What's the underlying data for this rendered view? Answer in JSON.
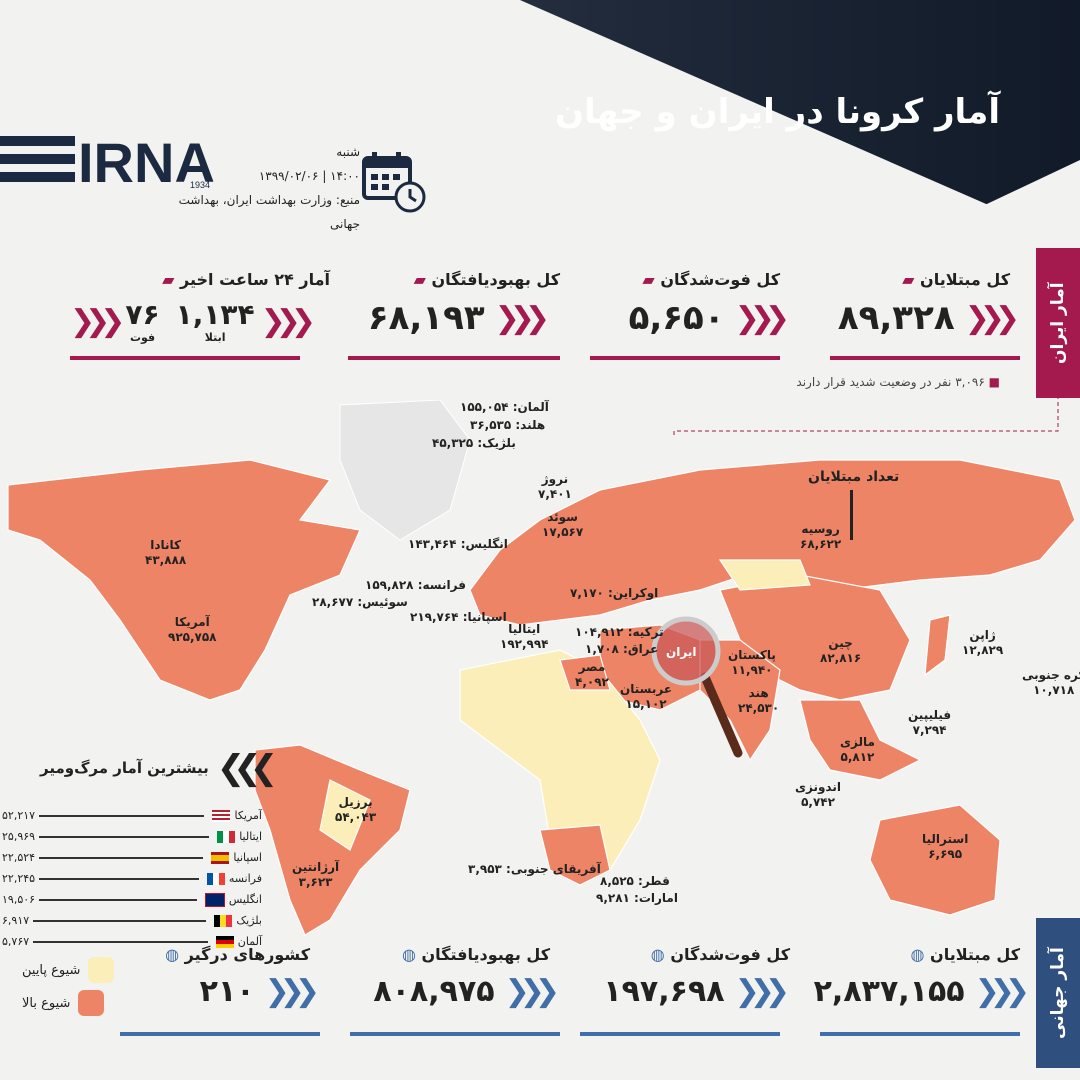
{
  "header": {
    "title": "آمار کرونا در ایران و جهان",
    "logo_text": "IRNA",
    "logo_year": "1934",
    "day": "شنبه",
    "datetime": "۱۴:۰۰ | ۱۳۹۹/۰۲/۰۶",
    "source": "منبع: وزارت بهداشت ایران، بهداشت جهانی"
  },
  "iran": {
    "tab_label": "آمار ایران",
    "cases_label": "کل مبتلایان",
    "cases": "۸۹,۳۲۸",
    "deaths_label": "کل فوت‌شدگان",
    "deaths": "۵,۶۵۰",
    "recovered_label": "کل بهبودیافتگان",
    "recovered": "۶۸,۱۹۳",
    "last24_label": "آمار ۲۴ ساعت اخیر",
    "last24_cases": "۱,۱۳۴",
    "last24_cases_label": "ابتلا",
    "last24_deaths": "۷۶",
    "last24_deaths_label": "فوت",
    "critical_note": "۳,۰۹۶ نفر در وضعیت شدید قرار دارند"
  },
  "map": {
    "cases_title": "تعداد مبتلایان",
    "iran_label": "ایران",
    "labels": {
      "germany": "آلمان: ۱۵۵,۰۵۴",
      "netherlands": "هلند: ۳۶,۵۳۵",
      "belgium": "بلژیک: ۴۵,۳۲۵",
      "norway_name": "نروژ",
      "norway_val": "۷,۴۰۱",
      "sweden_name": "سوئد",
      "sweden_val": "۱۷,۵۶۷",
      "uk": "انگلیس: ۱۴۳,۴۶۴",
      "france": "فرانسه: ۱۵۹,۸۲۸",
      "switzerland": "سوئیس: ۲۸,۶۷۷",
      "spain": "اسپانیا: ۲۱۹,۷۶۴",
      "ukraine": "اوکراین: ۷,۱۷۰",
      "italy_name": "ایتالیا",
      "italy_val": "۱۹۲,۹۹۴",
      "turkey": "ترکیه: ۱۰۴,۹۱۲",
      "iraq": "عراق: ۱,۷۰۸",
      "egypt_name": "مصر",
      "egypt_val": "۴,۰۹۲",
      "saudi_name": "عربستان",
      "saudi_val": "۱۵,۱۰۲",
      "canada_name": "کانادا",
      "canada_val": "۴۳,۸۸۸",
      "usa_name": "آمریکا",
      "usa_val": "۹۲۵,۷۵۸",
      "russia_name": "روسیه",
      "russia_val": "۶۸,۶۲۲",
      "pakistan_name": "پاکستان",
      "pakistan_val": "۱۱,۹۴۰",
      "india_name": "هند",
      "india_val": "۲۴,۵۳۰",
      "china_name": "چین",
      "china_val": "۸۲,۸۱۶",
      "japan_name": "ژاپن",
      "japan_val": "۱۲,۸۲۹",
      "skorea_name": "کره جنوبی",
      "skorea_val": "۱۰,۷۱۸",
      "philippines_name": "فیلیپین",
      "philippines_val": "۷,۲۹۴",
      "malaysia_name": "مالزی",
      "malaysia_val": "۵,۸۱۲",
      "indonesia_name": "اندونزی",
      "indonesia_val": "۵,۷۴۲",
      "australia_name": "استرالیا",
      "australia_val": "۶,۶۹۵",
      "brazil_name": "برزیل",
      "brazil_val": "۵۴,۰۴۳",
      "argentina_name": "آرژانتین",
      "argentina_val": "۳,۶۲۳",
      "safrica": "آفریقای جنوبی: ۳,۹۵۳",
      "qatar": "قطر: ۸,۵۲۵",
      "uae": "امارات: ۹,۲۸۱"
    }
  },
  "top_deaths": {
    "title": "بیشترین آمار مرگ‌ومیر",
    "rows": [
      {
        "country": "آمریکا",
        "value": "۵۲,۲۱۷",
        "flag": "us"
      },
      {
        "country": "ایتالیا",
        "value": "۲۵,۹۶۹",
        "flag": "it"
      },
      {
        "country": "اسپانیا",
        "value": "۲۲,۵۲۴",
        "flag": "es"
      },
      {
        "country": "فرانسه",
        "value": "۲۲,۲۴۵",
        "flag": "fr"
      },
      {
        "country": "انگلیس",
        "value": "۱۹,۵۰۶",
        "flag": "gb"
      },
      {
        "country": "بلژیک",
        "value": "۶,۹۱۷",
        "flag": "be"
      },
      {
        "country": "آلمان",
        "value": "۵,۷۶۷",
        "flag": "de"
      }
    ]
  },
  "world": {
    "tab_label": "آمار جهانی",
    "cases_label": "کل مبتلایان",
    "cases": "۲,۸۳۷,۱۵۵",
    "deaths_label": "کل فوت‌شدگان",
    "deaths": "۱۹۷,۶۹۸",
    "recovered_label": "کل بهبودیافتگان",
    "recovered": "۸۰۸,۹۷۵",
    "countries_label": "کشورهای درگیر",
    "countries": "۲۱۰"
  },
  "legend": {
    "low": "شیوع پایین",
    "high": "شیوع بالا",
    "low_color": "#fbeeb8",
    "high_color": "#ee8466"
  },
  "colors": {
    "iran_accent": "#a4194e",
    "world_accent": "#3f6ea8"
  }
}
